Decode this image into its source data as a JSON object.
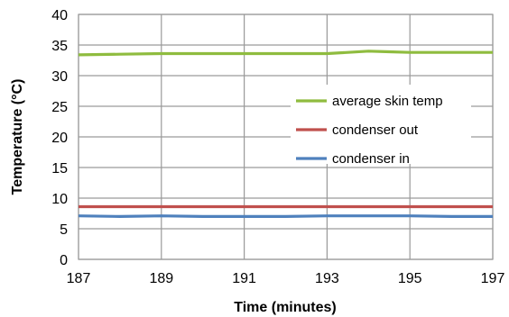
{
  "chart_data": {
    "type": "line",
    "xlabel": "Time (minutes)",
    "ylabel": "Temperature (°C)",
    "xlim": [
      187,
      197
    ],
    "ylim": [
      0,
      40
    ],
    "x_ticks": [
      "187",
      "189",
      "191",
      "193",
      "195",
      "197"
    ],
    "y_ticks": [
      "0",
      "5",
      "10",
      "15",
      "20",
      "25",
      "30",
      "35",
      "40"
    ],
    "grid": true,
    "legend_position": "right",
    "series": [
      {
        "name": "average skin temp",
        "color": "#8fbc3f",
        "x": [
          187,
          188,
          189,
          190,
          191,
          192,
          193,
          193.5,
          194,
          194.5,
          195,
          196,
          197
        ],
        "values": [
          33.4,
          33.5,
          33.6,
          33.6,
          33.6,
          33.6,
          33.6,
          33.8,
          34.0,
          33.9,
          33.8,
          33.8,
          33.8
        ]
      },
      {
        "name": "condenser out",
        "color": "#c0504d",
        "x": [
          187,
          188,
          189,
          190,
          191,
          192,
          193,
          194,
          195,
          196,
          197
        ],
        "values": [
          8.6,
          8.6,
          8.6,
          8.6,
          8.6,
          8.6,
          8.6,
          8.6,
          8.6,
          8.6,
          8.6
        ]
      },
      {
        "name": "condenser in",
        "color": "#4f81bd",
        "x": [
          187,
          188,
          189,
          190,
          191,
          192,
          193,
          194,
          195,
          196,
          197
        ],
        "values": [
          7.1,
          7.0,
          7.1,
          7.0,
          7.0,
          7.0,
          7.1,
          7.1,
          7.1,
          7.0,
          7.0
        ]
      }
    ]
  }
}
